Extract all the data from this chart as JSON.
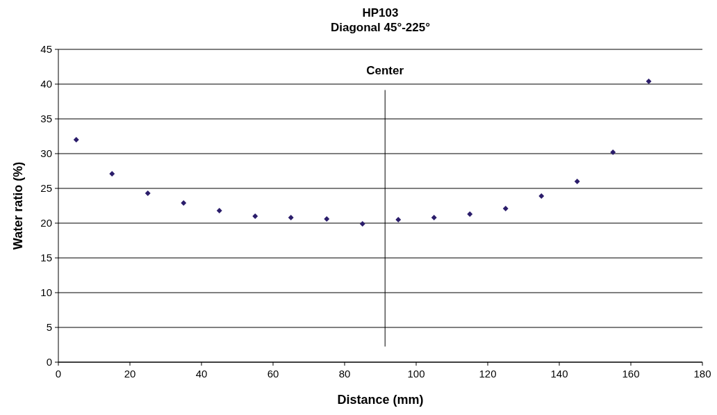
{
  "chart_data": {
    "type": "scatter",
    "title": "HP103",
    "subtitle": "Diagonal 45°-225°",
    "xlabel": "Distance (mm)",
    "ylabel": "Water ratio (%)",
    "x": [
      5,
      15,
      25,
      35,
      45,
      55,
      65,
      75,
      85,
      95,
      105,
      115,
      125,
      135,
      145,
      155,
      165
    ],
    "series": [
      {
        "color": "#2b1d6b",
        "values": [
          32.0,
          27.1,
          24.3,
          22.9,
          21.8,
          21.0,
          20.8,
          20.6,
          19.9,
          20.5,
          20.8,
          21.3,
          22.1,
          23.9,
          26.0,
          30.2,
          40.4
        ]
      }
    ],
    "xlim": [
      0,
      180
    ],
    "xticks": [
      0,
      20,
      40,
      60,
      80,
      100,
      120,
      140,
      160,
      180
    ],
    "ylim": [
      0,
      45
    ],
    "yticks": [
      0,
      5,
      10,
      15,
      20,
      25,
      30,
      35,
      40,
      45
    ],
    "ref_lines": [
      {
        "axis": "x",
        "value": 91.3,
        "label": "Center",
        "color": "#000000"
      }
    ],
    "grid": "y",
    "marker": "diamond"
  }
}
